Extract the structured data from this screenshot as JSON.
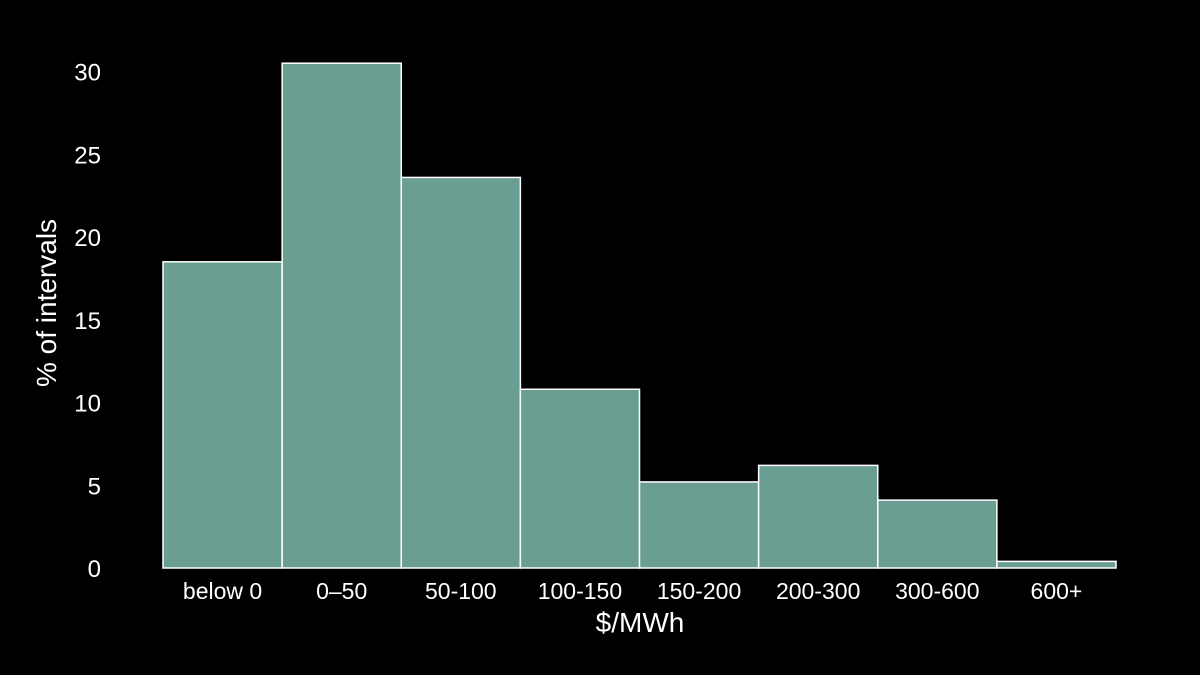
{
  "chart_data": {
    "type": "bar",
    "title": "",
    "xlabel": "$/MWh",
    "ylabel": "% of intervals",
    "categories": [
      "below 0",
      "0–50",
      "50-100",
      "100-150",
      "150-200",
      "200-300",
      "300-600",
      "600+"
    ],
    "values": [
      18.5,
      30.5,
      23.6,
      10.8,
      5.2,
      6.2,
      4.1,
      0.4
    ],
    "ylim": [
      0,
      32
    ],
    "yticks": [
      0,
      5,
      10,
      15,
      20,
      25,
      30
    ],
    "grid": false,
    "legend": "none",
    "colors": {
      "background": "#000000",
      "bar_fill": "#6a9e93",
      "bar_edge": "#ffffff",
      "text": "#ffffff"
    }
  }
}
